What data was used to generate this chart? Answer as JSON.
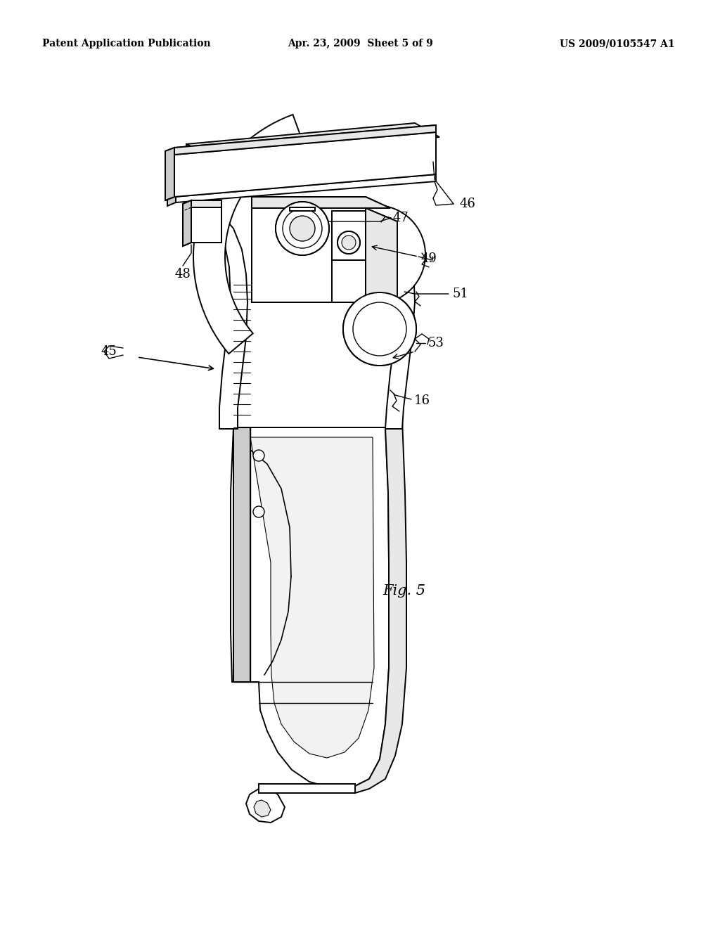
{
  "background_color": "#ffffff",
  "header_left": "Patent Application Publication",
  "header_mid": "Apr. 23, 2009  Sheet 5 of 9",
  "header_right": "US 2009/0105547 A1",
  "fig_label": "Fig. 5",
  "line_color": "#000000",
  "line_width": 1.4,
  "label_fontsize": 13,
  "header_fontsize": 10
}
